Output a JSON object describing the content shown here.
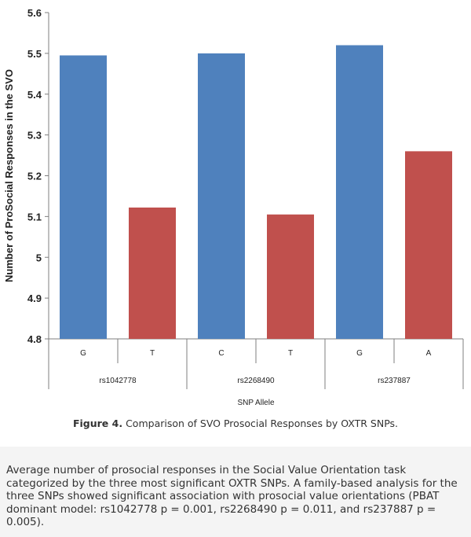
{
  "chart_data": {
    "type": "bar",
    "ylabel": "Number of ProSocial Responses in the SVO",
    "xlabel": "SNP Allele",
    "ylim": [
      4.8,
      5.6
    ],
    "yticks": [
      "4.8",
      "4.9",
      "5",
      "5.1",
      "5.2",
      "5.3",
      "5.4",
      "5.5",
      "5.6"
    ],
    "yticks_values": [
      4.8,
      4.9,
      5.0,
      5.1,
      5.2,
      5.3,
      5.4,
      5.5,
      5.6
    ],
    "groups": [
      {
        "name": "rs1042778",
        "bars": [
          {
            "allele": "G",
            "value": 5.495,
            "color": "#4f81bd"
          },
          {
            "allele": "T",
            "value": 5.122,
            "color": "#c0504d"
          }
        ]
      },
      {
        "name": "rs2268490",
        "bars": [
          {
            "allele": "C",
            "value": 5.5,
            "color": "#4f81bd"
          },
          {
            "allele": "T",
            "value": 5.105,
            "color": "#c0504d"
          }
        ]
      },
      {
        "name": "rs237887",
        "bars": [
          {
            "allele": "G",
            "value": 5.52,
            "color": "#4f81bd"
          },
          {
            "allele": "A",
            "value": 5.26,
            "color": "#c0504d"
          }
        ]
      }
    ],
    "grid": false
  },
  "caption": {
    "label": "Figure 4.",
    "text": "Comparison of SVO Prosocial Responses by OXTR SNPs."
  },
  "note": "Average number of prosocial responses in the Social Value Orientation task categorized by the three most significant OXTR SNPs. A family-based analysis for the three SNPs showed significant association with prosocial value orientations (PBAT dominant model: rs1042778 p = 0.001, rs2268490 p = 0.011, and rs237887 p = 0.005)."
}
